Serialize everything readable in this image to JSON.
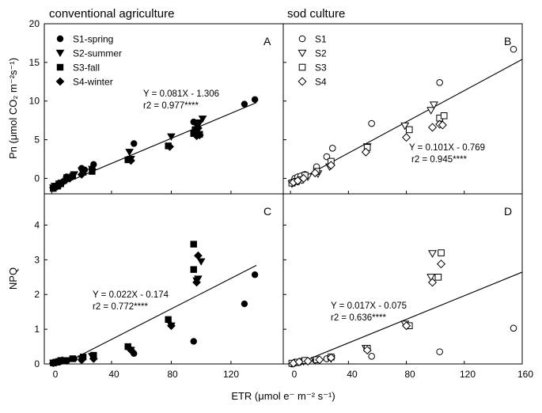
{
  "figure": {
    "titles": {
      "left": "conventional agriculture",
      "right": "sod culture"
    },
    "axes": {
      "x": {
        "label": "ETR (μmol e⁻ m⁻² s⁻¹)",
        "ticks": [
          "0",
          "40",
          "80",
          "120",
          "160"
        ]
      },
      "y_top": {
        "label": "Pn (μmol CO₂ m⁻²s⁻¹)",
        "ticks": [
          "0",
          "5",
          "10",
          "15",
          "20"
        ]
      },
      "y_bottom": {
        "label": "NPQ",
        "ticks": [
          "0",
          "1",
          "2",
          "3",
          "4"
        ]
      }
    }
  },
  "chart_data": [
    {
      "id": "A",
      "type": "scatter",
      "title": "conventional agriculture",
      "xlim": [
        -5,
        155
      ],
      "ylim": [
        -2,
        20
      ],
      "filled": true,
      "series": [
        {
          "name": "S1-spring",
          "marker": "circle",
          "points": [
            [
              1,
              -1.3
            ],
            [
              2,
              -1
            ],
            [
              4,
              -0.8
            ],
            [
              5,
              -0.6
            ],
            [
              8,
              -0.4
            ],
            [
              10,
              0.2
            ],
            [
              14,
              0.3
            ],
            [
              20,
              1.3
            ],
            [
              22,
              1.1
            ],
            [
              28,
              1.8
            ],
            [
              55,
              4.5
            ],
            [
              95,
              7.3
            ],
            [
              129,
              9.6
            ],
            [
              136,
              10.2
            ]
          ]
        },
        {
          "name": "S2-summer",
          "marker": "triangle-down",
          "points": [
            [
              1,
              -1.2
            ],
            [
              2,
              -1
            ],
            [
              3,
              -1.1
            ],
            [
              5,
              -0.7
            ],
            [
              7,
              -0.6
            ],
            [
              10,
              -0.2
            ],
            [
              15,
              0.5
            ],
            [
              20,
              1
            ],
            [
              27,
              1.2
            ],
            [
              52,
              3.4
            ],
            [
              53,
              2.5
            ],
            [
              80,
              5.4
            ],
            [
              97,
              6.8
            ],
            [
              99,
              7.2
            ],
            [
              101,
              7.7
            ]
          ]
        },
        {
          "name": "S3-fall",
          "marker": "square",
          "points": [
            [
              1,
              -1.3
            ],
            [
              2,
              -1.1
            ],
            [
              4,
              -1
            ],
            [
              6,
              -0.7
            ],
            [
              10,
              0.1
            ],
            [
              14,
              0.3
            ],
            [
              21,
              0.8
            ],
            [
              27,
              0.9
            ],
            [
              51,
              2.4
            ],
            [
              78,
              4.2
            ],
            [
              95,
              5.8
            ],
            [
              96,
              6.3
            ],
            [
              97,
              6.2
            ],
            [
              99,
              5.7
            ]
          ]
        },
        {
          "name": "S4-winter",
          "marker": "diamond",
          "points": [
            [
              1,
              -1.2
            ],
            [
              3,
              -1
            ],
            [
              5,
              -0.9
            ],
            [
              7,
              -0.5
            ],
            [
              12,
              0
            ],
            [
              20,
              0.5
            ],
            [
              27,
              1.2
            ],
            [
              53,
              2.3
            ],
            [
              79,
              4.1
            ],
            [
              96,
              5.9
            ],
            [
              97,
              5.5
            ],
            [
              98,
              6.5
            ],
            [
              99,
              5.6
            ]
          ]
        }
      ],
      "fit": {
        "slope": 0.081,
        "intercept": -1.306,
        "x_range": [
          0,
          137
        ],
        "equation": "Y = 0.081X - 1.306",
        "r2": "r2 = 0.977****"
      }
    },
    {
      "id": "B",
      "type": "scatter",
      "title": "sod culture",
      "xlim": [
        -5,
        160
      ],
      "ylim": [
        -2,
        20
      ],
      "filled": false,
      "series": [
        {
          "name": "S1",
          "marker": "circle",
          "points": [
            [
              1,
              -0.6
            ],
            [
              3,
              0
            ],
            [
              5,
              0.2
            ],
            [
              7,
              0.3
            ],
            [
              10,
              0.5
            ],
            [
              18,
              1.5
            ],
            [
              25,
              2.8
            ],
            [
              29,
              3.9
            ],
            [
              56,
              7.1
            ],
            [
              103,
              12.4
            ],
            [
              154,
              16.7
            ]
          ]
        },
        {
          "name": "S2",
          "marker": "triangle-down",
          "points": [
            [
              1,
              -0.7
            ],
            [
              3,
              -0.5
            ],
            [
              5,
              -0.4
            ],
            [
              8,
              -0.2
            ],
            [
              12,
              0.2
            ],
            [
              19,
              0.6
            ],
            [
              27,
              1.5
            ],
            [
              53,
              4.1
            ],
            [
              79,
              6.8
            ],
            [
              97,
              8.8
            ],
            [
              99,
              9.5
            ]
          ]
        },
        {
          "name": "S3",
          "marker": "square",
          "points": [
            [
              1,
              -0.6
            ],
            [
              4,
              -0.4
            ],
            [
              7,
              -0.2
            ],
            [
              10,
              0.4
            ],
            [
              18,
              0.9
            ],
            [
              28,
              2.2
            ],
            [
              53,
              4
            ],
            [
              82,
              6.3
            ],
            [
              103,
              7.8
            ],
            [
              106,
              8.1
            ]
          ]
        },
        {
          "name": "S4",
          "marker": "diamond",
          "points": [
            [
              2,
              -0.5
            ],
            [
              5,
              -0.3
            ],
            [
              9,
              0
            ],
            [
              17,
              0.7
            ],
            [
              28,
              1.7
            ],
            [
              52,
              3.4
            ],
            [
              80,
              5.3
            ],
            [
              98,
              6.6
            ],
            [
              103,
              7
            ],
            [
              105,
              6.9
            ]
          ]
        }
      ],
      "fit": {
        "slope": 0.101,
        "intercept": -0.769,
        "x_range": [
          0,
          160
        ],
        "equation": "Y = 0.101X - 0.769",
        "r2": "r2 = 0.945****"
      }
    },
    {
      "id": "C",
      "type": "scatter",
      "xlim": [
        -5,
        155
      ],
      "ylim": [
        0,
        4.9
      ],
      "filled": true,
      "series": [
        {
          "name": "S1-spring",
          "marker": "circle",
          "points": [
            [
              1,
              0.02
            ],
            [
              3,
              0.04
            ],
            [
              5,
              0.05
            ],
            [
              10,
              0.08
            ],
            [
              15,
              0.15
            ],
            [
              20,
              0.12
            ],
            [
              28,
              0.2
            ],
            [
              55,
              0.3
            ],
            [
              95,
              0.65
            ],
            [
              129,
              1.73
            ],
            [
              136,
              2.57
            ]
          ]
        },
        {
          "name": "S2-summer",
          "marker": "triangle-down",
          "points": [
            [
              1,
              0.03
            ],
            [
              3,
              0.05
            ],
            [
              5,
              0.07
            ],
            [
              10,
              0.1
            ],
            [
              20,
              0.15
            ],
            [
              27,
              0.22
            ],
            [
              53,
              0.4
            ],
            [
              80,
              1.1
            ],
            [
              97,
              2.4
            ],
            [
              98,
              2.45
            ],
            [
              100,
              2.95
            ]
          ]
        },
        {
          "name": "S3-fall",
          "marker": "square",
          "points": [
            [
              1,
              0.03
            ],
            [
              3,
              0.05
            ],
            [
              6,
              0.1
            ],
            [
              14,
              0.15
            ],
            [
              21,
              0.2
            ],
            [
              28,
              0.25
            ],
            [
              51,
              0.5
            ],
            [
              78,
              1.28
            ],
            [
              95,
              3.45
            ],
            [
              95,
              2.72
            ]
          ]
        },
        {
          "name": "S4-winter",
          "marker": "diamond",
          "points": [
            [
              1,
              0.03
            ],
            [
              3,
              0.05
            ],
            [
              7,
              0.1
            ],
            [
              20,
              0.12
            ],
            [
              28,
              0.15
            ],
            [
              53,
              0.4
            ],
            [
              80,
              1.1
            ],
            [
              97,
              2.35
            ],
            [
              98,
              3.12
            ]
          ]
        }
      ],
      "fit": {
        "slope": 0.022,
        "intercept": -0.174,
        "x_range": [
          8,
          137
        ],
        "equation": "Y = 0.022X - 0.174",
        "r2": "r2 = 0.772****"
      }
    },
    {
      "id": "D",
      "type": "scatter",
      "xlim": [
        -5,
        160
      ],
      "ylim": [
        0,
        4.9
      ],
      "filled": false,
      "series": [
        {
          "name": "S1",
          "marker": "circle",
          "points": [
            [
              1,
              0
            ],
            [
              3,
              0.03
            ],
            [
              5,
              0.05
            ],
            [
              7,
              0.07
            ],
            [
              10,
              0.1
            ],
            [
              17,
              0.12
            ],
            [
              25,
              0.15
            ],
            [
              28,
              0.2
            ],
            [
              56,
              0.22
            ],
            [
              103,
              0.35
            ],
            [
              154,
              1.03
            ]
          ]
        },
        {
          "name": "S2",
          "marker": "triangle-down",
          "points": [
            [
              2,
              0.02
            ],
            [
              5,
              0.05
            ],
            [
              9,
              0.07
            ],
            [
              17,
              0.1
            ],
            [
              28,
              0.15
            ],
            [
              52,
              0.45
            ],
            [
              79,
              1.15
            ],
            [
              97,
              2.5
            ],
            [
              98,
              3.18
            ]
          ]
        },
        {
          "name": "S3",
          "marker": "square",
          "points": [
            [
              1,
              0.02
            ],
            [
              5,
              0.05
            ],
            [
              10,
              0.1
            ],
            [
              18,
              0.12
            ],
            [
              28,
              0.2
            ],
            [
              53,
              0.45
            ],
            [
              82,
              1.1
            ],
            [
              102,
              2.5
            ],
            [
              104,
              3.2
            ]
          ]
        },
        {
          "name": "S4",
          "marker": "diamond",
          "points": [
            [
              2,
              0.02
            ],
            [
              6,
              0.06
            ],
            [
              12,
              0.08
            ],
            [
              20,
              0.12
            ],
            [
              28,
              0.18
            ],
            [
              53,
              0.4
            ],
            [
              80,
              1.1
            ],
            [
              98,
              2.35
            ],
            [
              104,
              2.88
            ]
          ]
        }
      ],
      "fit": {
        "slope": 0.017,
        "intercept": -0.075,
        "x_range": [
          5,
          160
        ],
        "equation": "Y = 0.017X - 0.075",
        "r2": "r2 = 0.636****"
      }
    }
  ]
}
